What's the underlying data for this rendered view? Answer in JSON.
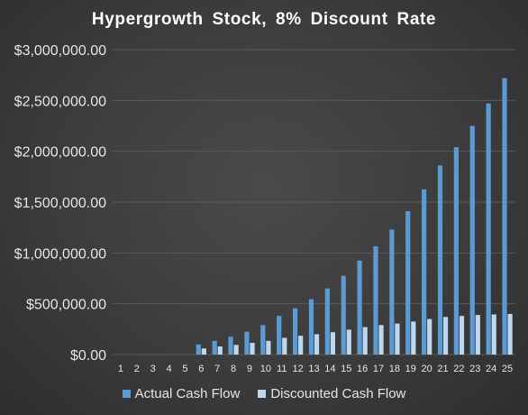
{
  "chart_data": {
    "type": "bar",
    "title": "Hypergrowth  Stock, 8% Discount  Rate",
    "xlabel": "",
    "ylabel": "",
    "categories": [
      "1",
      "2",
      "3",
      "4",
      "5",
      "6",
      "7",
      "8",
      "9",
      "10",
      "11",
      "12",
      "13",
      "14",
      "15",
      "16",
      "17",
      "18",
      "19",
      "20",
      "21",
      "22",
      "23",
      "24",
      "25"
    ],
    "ylim": [
      0,
      3000000
    ],
    "yticks": [
      0,
      500000,
      1000000,
      1500000,
      2000000,
      2500000,
      3000000
    ],
    "ytick_labels": [
      "$0.00",
      "$500,000.00",
      "$1,000,000.00",
      "$1,500,000.00",
      "$2,000,000.00",
      "$2,500,000.00",
      "$3,000,000.00"
    ],
    "grid": true,
    "legend_position": "bottom",
    "series": [
      {
        "name": "Actual Cash Flow",
        "color": "#5b9bd5",
        "values": [
          0,
          0,
          0,
          0,
          0,
          100000,
          135000,
          175000,
          225000,
          290000,
          380000,
          455000,
          545000,
          650000,
          775000,
          925000,
          1065000,
          1230000,
          1410000,
          1625000,
          1860000,
          2040000,
          2250000,
          2470000,
          2720000
        ]
      },
      {
        "name": "Discounted Cash Flow",
        "color": "#bdd7ee",
        "values": [
          0,
          0,
          0,
          0,
          0,
          60000,
          80000,
          95000,
          115000,
          135000,
          165000,
          185000,
          200000,
          220000,
          245000,
          270000,
          290000,
          305000,
          325000,
          350000,
          370000,
          380000,
          390000,
          395000,
          400000
        ]
      }
    ]
  }
}
